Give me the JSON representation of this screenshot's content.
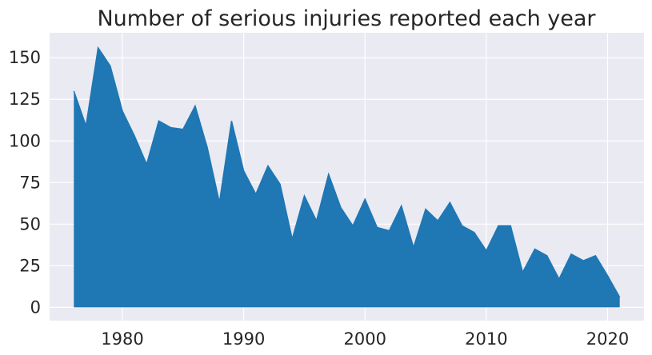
{
  "chart_data": {
    "type": "area",
    "title": "Number of serious injuries reported each year",
    "xlabel": "",
    "ylabel": "",
    "xlim": [
      1974,
      2023
    ],
    "ylim": [
      -8,
      165
    ],
    "grid": true,
    "x_ticks": [
      1980,
      1990,
      2000,
      2010,
      2020
    ],
    "y_ticks": [
      0,
      25,
      50,
      75,
      100,
      125,
      150
    ],
    "x": [
      1976,
      1977,
      1978,
      1979,
      1980,
      1981,
      1982,
      1983,
      1984,
      1985,
      1986,
      1987,
      1988,
      1989,
      1990,
      1991,
      1992,
      1993,
      1994,
      1995,
      1996,
      1997,
      1998,
      1999,
      2000,
      2001,
      2002,
      2003,
      2004,
      2005,
      2006,
      2007,
      2008,
      2009,
      2010,
      2011,
      2012,
      2013,
      2014,
      2015,
      2016,
      2017,
      2018,
      2019,
      2020,
      2021
    ],
    "series": [
      {
        "values": [
          130,
          109,
          156,
          145,
          118,
          103,
          86,
          112,
          108,
          107,
          121,
          96,
          63,
          112,
          82,
          68,
          85,
          74,
          41,
          67,
          52,
          80,
          60,
          49,
          65,
          48,
          46,
          61,
          36,
          59,
          52,
          63,
          49,
          45,
          34,
          49,
          49,
          21,
          35,
          31,
          17,
          32,
          28,
          31,
          19,
          6
        ],
        "color": "#1f77b4"
      }
    ],
    "colors": {
      "background": "#eaeaf2",
      "grid": "#ffffff",
      "fill": "#1f77b4",
      "text": "#262626"
    }
  }
}
